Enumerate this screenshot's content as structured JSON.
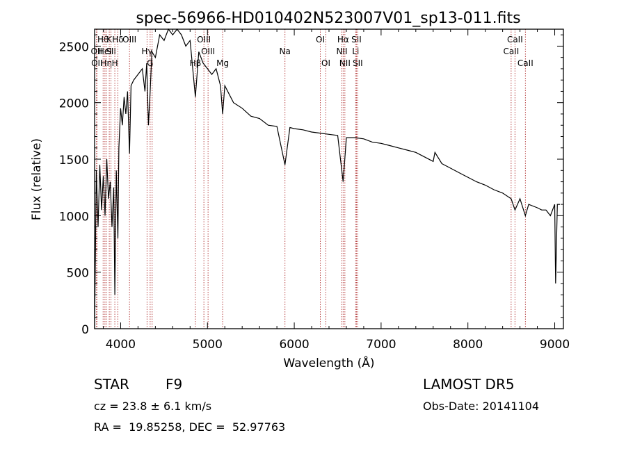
{
  "chart_data": {
    "type": "line",
    "title": "spec-56966-HD010402N523007V01_sp13-011.fits",
    "xlabel": "Wavelength (Å)",
    "ylabel": "Flux (relative)",
    "xlim": [
      3700,
      9100
    ],
    "ylim": [
      0,
      2650
    ],
    "x_ticks": [
      4000,
      5000,
      6000,
      7000,
      8000,
      9000
    ],
    "y_ticks": [
      0,
      500,
      1000,
      1500,
      2000,
      2500
    ],
    "grid": false,
    "series": [
      {
        "x": [
          3700,
          3720,
          3740,
          3760,
          3780,
          3800,
          3820,
          3840,
          3860,
          3880,
          3900,
          3920,
          3933,
          3950,
          3968,
          3980,
          4000,
          4020,
          4040,
          4060,
          4080,
          4102,
          4120,
          4150,
          4200,
          4250,
          4280,
          4300,
          4320,
          4340,
          4360,
          4400,
          4450,
          4500,
          4550,
          4600,
          4650,
          4700,
          4750,
          4800,
          4861,
          4900,
          4950,
          5000,
          5050,
          5100,
          5150,
          5175,
          5200,
          5300,
          5400,
          5500,
          5600,
          5700,
          5800,
          5893,
          5950,
          6000,
          6100,
          6200,
          6300,
          6400,
          6500,
          6563,
          6600,
          6700,
          6800,
          6900,
          7000,
          7100,
          7200,
          7300,
          7400,
          7500,
          7600,
          7620,
          7700,
          7800,
          7900,
          8000,
          8100,
          8200,
          8300,
          8400,
          8498,
          8542,
          8600,
          8662,
          8700,
          8800,
          8850,
          8900,
          8950,
          9000,
          9010,
          9030,
          9060
        ],
        "y": [
          0,
          1400,
          900,
          1450,
          1050,
          1350,
          1000,
          1500,
          1150,
          1300,
          900,
          1250,
          300,
          1400,
          800,
          1600,
          1950,
          1800,
          2050,
          1900,
          2100,
          1550,
          2150,
          2200,
          2250,
          2300,
          2100,
          2350,
          1800,
          2100,
          2450,
          2400,
          2600,
          2550,
          2650,
          2600,
          2650,
          2600,
          2500,
          2550,
          2050,
          2450,
          2350,
          2300,
          2250,
          2300,
          2150,
          1900,
          2150,
          2000,
          1950,
          1880,
          1860,
          1800,
          1790,
          1450,
          1780,
          1770,
          1760,
          1740,
          1730,
          1720,
          1710,
          1300,
          1690,
          1690,
          1680,
          1650,
          1640,
          1620,
          1600,
          1580,
          1560,
          1520,
          1480,
          1560,
          1460,
          1420,
          1380,
          1340,
          1300,
          1270,
          1230,
          1200,
          1150,
          1050,
          1150,
          1000,
          1100,
          1070,
          1050,
          1050,
          1000,
          1100,
          400,
          1100,
          1100
        ]
      }
    ],
    "lines": [
      {
        "wave": 3722,
        "labels": [
          "OII"
        ],
        "row": 1
      },
      {
        "wave": 3727,
        "labels": [
          "OII"
        ],
        "row": 2
      },
      {
        "wave": 3798,
        "labels": [
          "Hθ"
        ],
        "row": 0
      },
      {
        "wave": 3819,
        "labels": [
          "HeI"
        ],
        "row": 1
      },
      {
        "wave": 3835,
        "labels": [
          "Hη"
        ],
        "row": 2
      },
      {
        "wave": 3869,
        "labels": [
          "K"
        ],
        "row": 0
      },
      {
        "wave": 3889,
        "labels": [
          "SII"
        ],
        "row": 1
      },
      {
        "wave": 3933,
        "labels": [
          "H"
        ],
        "row": 2
      },
      {
        "wave": 3968,
        "labels": [
          "Hδ"
        ],
        "row": 0
      },
      {
        "wave": 4102,
        "labels": [
          "OIII"
        ],
        "row": 0
      },
      {
        "wave": 4304,
        "labels": [
          "Hγ"
        ],
        "row": 1
      },
      {
        "wave": 4340,
        "labels": [
          "G"
        ],
        "row": 2
      },
      {
        "wave": 4363,
        "labels": [],
        "row": 0
      },
      {
        "wave": 4861,
        "labels": [
          "Hβ"
        ],
        "row": 2
      },
      {
        "wave": 4959,
        "labels": [
          "OIII"
        ],
        "row": 0
      },
      {
        "wave": 5007,
        "labels": [
          "OIII"
        ],
        "row": 1
      },
      {
        "wave": 5175,
        "labels": [
          "Mg"
        ],
        "row": 2
      },
      {
        "wave": 5893,
        "labels": [
          "Na"
        ],
        "row": 1
      },
      {
        "wave": 6300,
        "labels": [
          "OI"
        ],
        "row": 0
      },
      {
        "wave": 6364,
        "labels": [
          "OI"
        ],
        "row": 2
      },
      {
        "wave": 6548,
        "labels": [
          "NII"
        ],
        "row": 1
      },
      {
        "wave": 6563,
        "labels": [
          "Hα"
        ],
        "row": 0
      },
      {
        "wave": 6583,
        "labels": [
          "NII"
        ],
        "row": 2
      },
      {
        "wave": 6707,
        "labels": [
          "Li"
        ],
        "row": 1
      },
      {
        "wave": 6716,
        "labels": [
          "SII"
        ],
        "row": 0
      },
      {
        "wave": 6731,
        "labels": [
          "SII"
        ],
        "row": 2
      },
      {
        "wave": 8498,
        "labels": [
          "CaII"
        ],
        "row": 1
      },
      {
        "wave": 8542,
        "labels": [
          "CaII"
        ],
        "row": 0
      },
      {
        "wave": 8662,
        "labels": [
          "CaII"
        ],
        "row": 2
      }
    ]
  },
  "info": {
    "object_type": "STAR",
    "subclass": "F9",
    "survey": "LAMOST DR5",
    "redshift": "cz = 23.8 ± 6.1 km/s",
    "obs_date": "Obs-Date: 20141104",
    "coords": "RA =  19.85258, DEC =  52.97763"
  },
  "colors": {
    "spectrum": "#000000",
    "line_marker": "#b03030"
  }
}
